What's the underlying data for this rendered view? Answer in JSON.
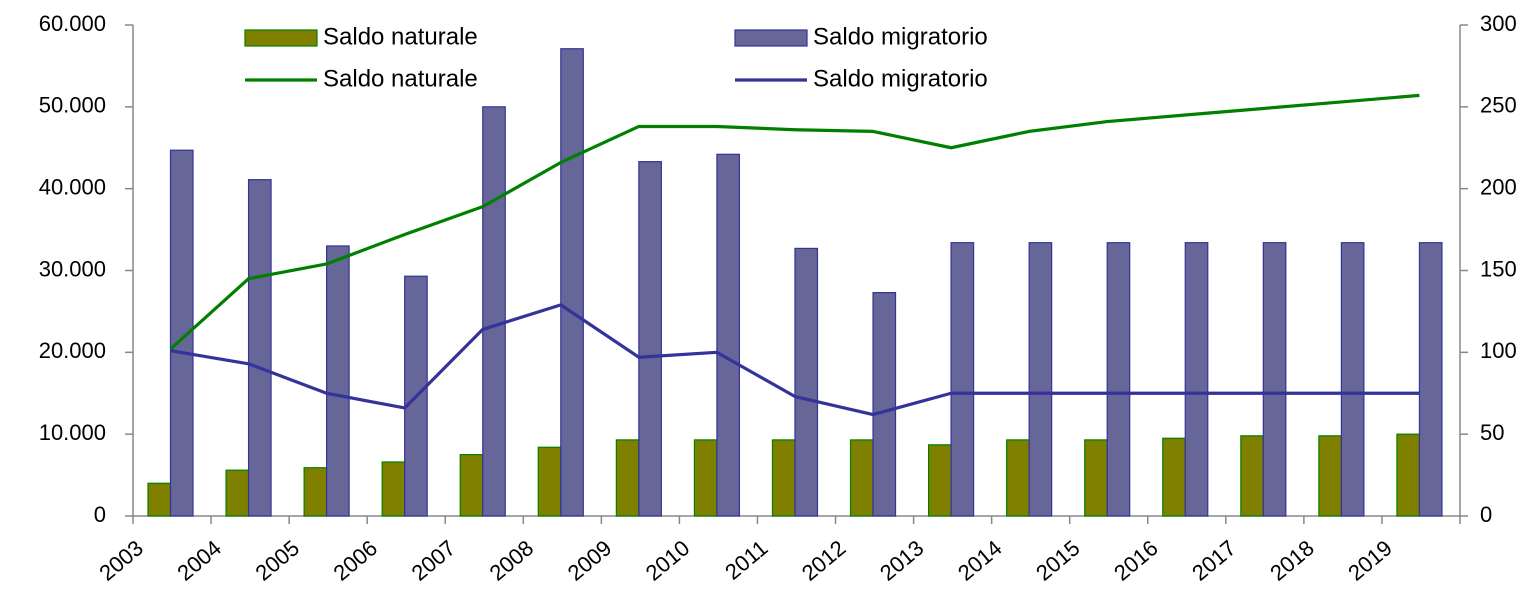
{
  "chart_data": {
    "type": "bar",
    "categories": [
      "2003",
      "2004",
      "2005",
      "2006",
      "2007",
      "2008",
      "2009",
      "2010",
      "2011",
      "2012",
      "2013",
      "2014",
      "2015",
      "2016",
      "2017",
      "2018",
      "2019"
    ],
    "series": [
      {
        "name": "Saldo naturale",
        "type": "bar",
        "color": "#808000",
        "values": [
          4000,
          5600,
          5900,
          6600,
          7500,
          8400,
          9300,
          9300,
          9300,
          9300,
          8700,
          9300,
          9300,
          9500,
          9800,
          9800,
          10000
        ]
      },
      {
        "name": "Saldo migratorio",
        "type": "bar",
        "color": "#666699",
        "values": [
          44700,
          41100,
          33000,
          29300,
          50000,
          57100,
          43300,
          44200,
          32700,
          27300,
          33400,
          33400,
          33400,
          33400,
          33400,
          33400,
          33400
        ]
      },
      {
        "name": "Saldo naturale",
        "type": "line",
        "axis": "y2",
        "color": "#008000",
        "values": [
          102,
          145,
          154,
          172,
          189,
          216,
          238,
          238,
          236,
          235,
          225,
          235,
          241,
          245,
          249,
          253,
          257
        ]
      },
      {
        "name": "Saldo migratorio",
        "type": "line",
        "axis": "y2",
        "color": "#333399",
        "values": [
          101,
          93,
          75,
          66,
          114,
          129,
          97,
          100,
          73,
          62,
          75,
          75,
          75,
          75,
          75,
          75,
          75
        ]
      }
    ],
    "ylim": [
      0,
      60000
    ],
    "yticks": [
      0,
      {
        "value": 10000,
        "label": "10.000"
      },
      {
        "value": 20000,
        "label": "20.000"
      },
      {
        "value": 30000,
        "label": "30.000"
      },
      {
        "value": 40000,
        "label": "40.000"
      },
      {
        "value": 50000,
        "label": "50.000"
      },
      {
        "value": 60000,
        "label": "60.000"
      }
    ],
    "y2lim": [
      0,
      300
    ],
    "y2ticks": [
      0,
      50,
      100,
      150,
      200,
      250,
      300
    ],
    "legend": "top"
  }
}
